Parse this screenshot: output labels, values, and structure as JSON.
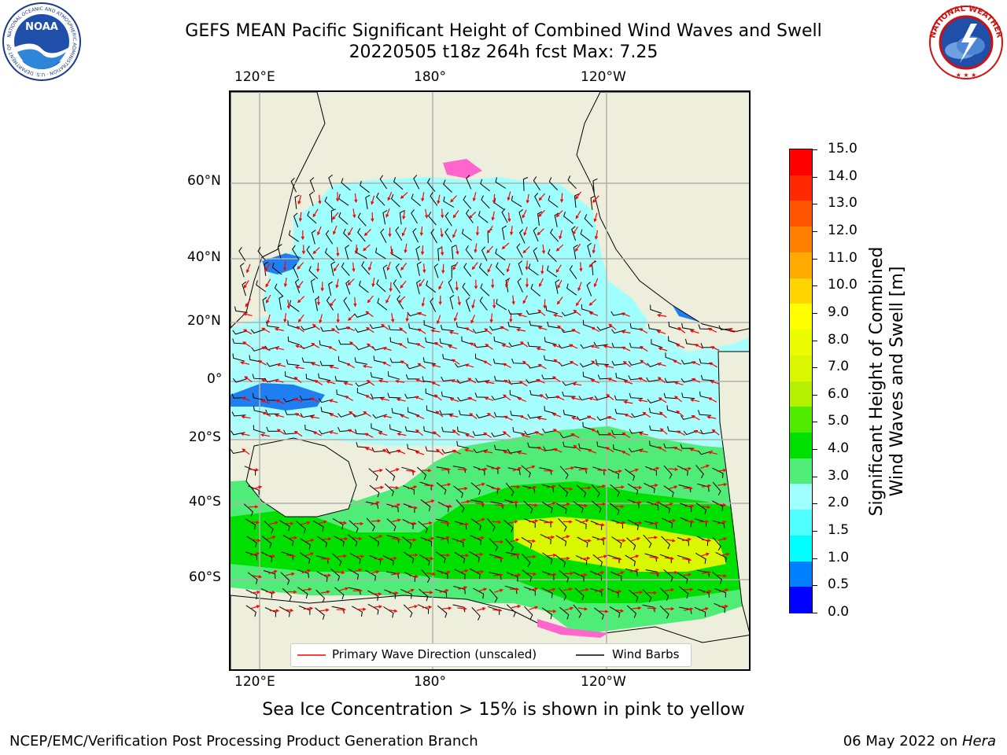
{
  "title": {
    "line1": "GEFS MEAN Pacific Significant Height of Combined Wind Waves and Swell",
    "line2": "20220505 t18z 264h fcst   Max: 7.25"
  },
  "logos": {
    "noaa": {
      "text": "NOAA",
      "ring_text": "NATIONAL OCEANIC AND ATMOSPHERIC ADMINISTRATION · U.S. DEPARTMENT OF COMMERCE",
      "icon": "noaa-logo-icon"
    },
    "nws": {
      "ring_text": "NATIONAL WEATHER SERVICE",
      "icon": "nws-logo-icon"
    }
  },
  "map": {
    "lon_labels": [
      "120°E",
      "180°",
      "120°W"
    ],
    "lat_labels": [
      "60°N",
      "40°N",
      "20°N",
      "0°",
      "20°S",
      "40°S",
      "60°S"
    ],
    "colors": {
      "land": "#eeeedd",
      "coast": "#000000",
      "grid": "#b0b0b0",
      "wave_arrow": "#ff0000",
      "barb": "#000000"
    }
  },
  "colorbar": {
    "title_line1": "Significant Height of Combined",
    "title_line2": "Wind Waves and Swell [m]",
    "ticks": [
      "15.0",
      "14.0",
      "13.0",
      "12.0",
      "11.0",
      "10.0",
      "9.0",
      "8.0",
      "7.0",
      "6.0",
      "5.0",
      "4.0",
      "3.0",
      "2.0",
      "1.5",
      "1.0",
      "0.5",
      "0.0"
    ],
    "colors_top_to_bottom": [
      "#ff0000",
      "#ff2800",
      "#ff5500",
      "#ff8000",
      "#ffaa00",
      "#ffd400",
      "#ffff00",
      "#ecfc00",
      "#d8f700",
      "#b5f000",
      "#50ec00",
      "#00e000",
      "#50ee78",
      "#a0ffff",
      "#50ffff",
      "#00ffff",
      "#0080ff",
      "#0000ff"
    ]
  },
  "legend": {
    "wave_label": "Primary Wave Direction (unscaled)",
    "barb_label": "Wind Barbs"
  },
  "subtitle": "Sea Ice Concentration > 15% is shown in pink to yellow",
  "footer": {
    "left": "NCEP/EMC/Verification Post Processing Product Generation Branch",
    "right_date": "06 May 2022 on ",
    "right_host": "Hera"
  }
}
